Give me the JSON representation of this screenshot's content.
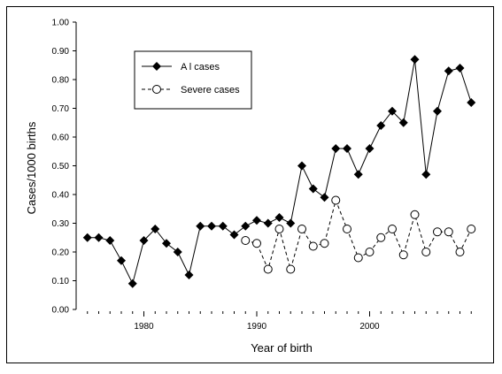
{
  "chart_data": {
    "type": "line",
    "title": "",
    "xlabel": "Year of birth",
    "ylabel": "Cases/1000 births",
    "xlim": [
      1974,
      2010
    ],
    "ylim": [
      0,
      1
    ],
    "x_ticks": [
      1980,
      1990,
      2000
    ],
    "y_ticks": [
      "0.00",
      "0.10",
      "0.20",
      "0.30",
      "0.40",
      "0.50",
      "0.60",
      "0.70",
      "0.80",
      "0.90",
      "1.00"
    ],
    "grid": false,
    "legend_position": "top-left",
    "series": [
      {
        "name": "All cases",
        "marker": "filled-diamond",
        "color": "#000000",
        "x": [
          1975,
          1976,
          1977,
          1978,
          1979,
          1980,
          1981,
          1982,
          1983,
          1984,
          1985,
          1986,
          1987,
          1988,
          1989,
          1990,
          1991,
          1992,
          1993,
          1994,
          1995,
          1996,
          1997,
          1998,
          1999,
          2000,
          2001,
          2002,
          2003,
          2004,
          2005,
          2006,
          2007,
          2008,
          2009
        ],
        "y": [
          0.25,
          0.25,
          0.24,
          0.17,
          0.09,
          0.24,
          0.28,
          0.23,
          0.2,
          0.12,
          0.29,
          0.29,
          0.29,
          0.26,
          0.29,
          0.31,
          0.3,
          0.32,
          0.3,
          0.5,
          0.42,
          0.39,
          0.56,
          0.56,
          0.47,
          0.56,
          0.64,
          0.69,
          0.65,
          0.87,
          0.47,
          0.69,
          0.83,
          0.84,
          0.72
        ]
      },
      {
        "name": "Severe cases",
        "marker": "open-circle",
        "color": "#000000",
        "x": [
          1989,
          1990,
          1991,
          1992,
          1993,
          1994,
          1995,
          1996,
          1997,
          1998,
          1999,
          2000,
          2001,
          2002,
          2003,
          2004,
          2005,
          2006,
          2007,
          2008,
          2009
        ],
        "y": [
          0.24,
          0.23,
          0.14,
          0.28,
          0.14,
          0.28,
          0.22,
          0.23,
          0.38,
          0.28,
          0.18,
          0.2,
          0.25,
          0.28,
          0.19,
          0.33,
          0.2,
          0.27,
          0.27,
          0.2,
          0.28
        ]
      }
    ],
    "legend": {
      "all_label": "A l cases",
      "severe_label": "Severe cases"
    }
  }
}
